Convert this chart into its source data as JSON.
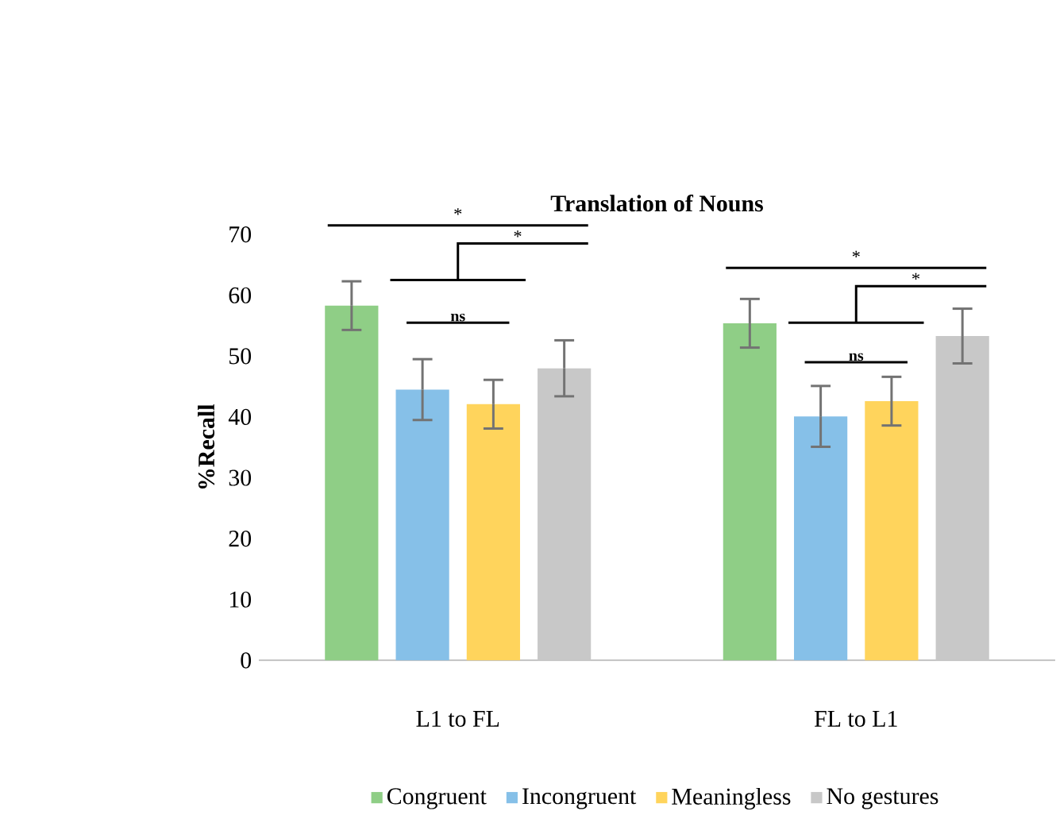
{
  "chart_data": {
    "type": "bar",
    "title": "Translation of Nouns",
    "ylabel": "%Recall",
    "categories": [
      "L1 to FL",
      "FL to L1"
    ],
    "series": [
      {
        "name": "Congruent",
        "color": "#8fce86",
        "values": [
          58.3,
          55.4
        ],
        "errors": [
          4,
          4
        ]
      },
      {
        "name": "Incongruent",
        "color": "#86c0e8",
        "values": [
          44.5,
          40.1
        ],
        "errors": [
          5,
          5
        ]
      },
      {
        "name": "Meaningless",
        "color": "#ffd45c",
        "values": [
          42.1,
          42.6
        ],
        "errors": [
          4,
          4
        ]
      },
      {
        "name": "No gestures",
        "color": "#c8c8c8",
        "values": [
          48,
          53.3
        ],
        "errors": [
          4.6,
          4.5
        ]
      }
    ],
    "ylim": [
      0,
      70
    ],
    "yticks": [
      0,
      10,
      20,
      30,
      40,
      50,
      60,
      70
    ],
    "grid": false,
    "legend": "bottom",
    "annotations": [
      "*",
      "*",
      "ns",
      "*",
      "*",
      "ns"
    ]
  }
}
